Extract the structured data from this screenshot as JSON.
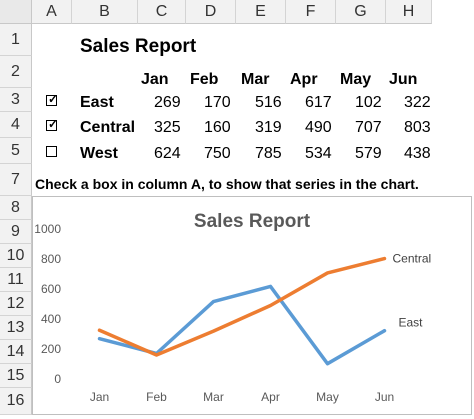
{
  "columns": [
    "A",
    "B",
    "C",
    "D",
    "E",
    "F",
    "G",
    "H"
  ],
  "rows": [
    "1",
    "2",
    "3",
    "4",
    "5",
    "7",
    "8",
    "9",
    "10",
    "11",
    "12",
    "13",
    "14",
    "15",
    "16"
  ],
  "report_title": "Sales Report",
  "months": [
    "Jan",
    "Feb",
    "Mar",
    "Apr",
    "May",
    "Jun"
  ],
  "table": [
    {
      "name": "East",
      "checked": true,
      "values": [
        "269",
        "170",
        "516",
        "617",
        "102",
        "322"
      ]
    },
    {
      "name": "Central",
      "checked": true,
      "values": [
        "325",
        "160",
        "319",
        "490",
        "707",
        "803"
      ]
    },
    {
      "name": "West",
      "checked": false,
      "values": [
        "624",
        "750",
        "785",
        "534",
        "579",
        "438"
      ]
    }
  ],
  "instruction": "Check a box in column A, to show that series in the chart.",
  "colors": {
    "east": "#5b9bd5",
    "central": "#ed7d31"
  },
  "chart_data": {
    "type": "line",
    "title": "Sales Report",
    "categories": [
      "Jan",
      "Feb",
      "Mar",
      "Apr",
      "May",
      "Jun"
    ],
    "ylim": [
      0,
      1000
    ],
    "yticks": [
      "0",
      "200",
      "400",
      "600",
      "800",
      "1000"
    ],
    "series": [
      {
        "name": "East",
        "values": [
          269,
          170,
          516,
          617,
          102,
          322
        ]
      },
      {
        "name": "Central",
        "values": [
          325,
          160,
          319,
          490,
          707,
          803
        ]
      }
    ]
  }
}
